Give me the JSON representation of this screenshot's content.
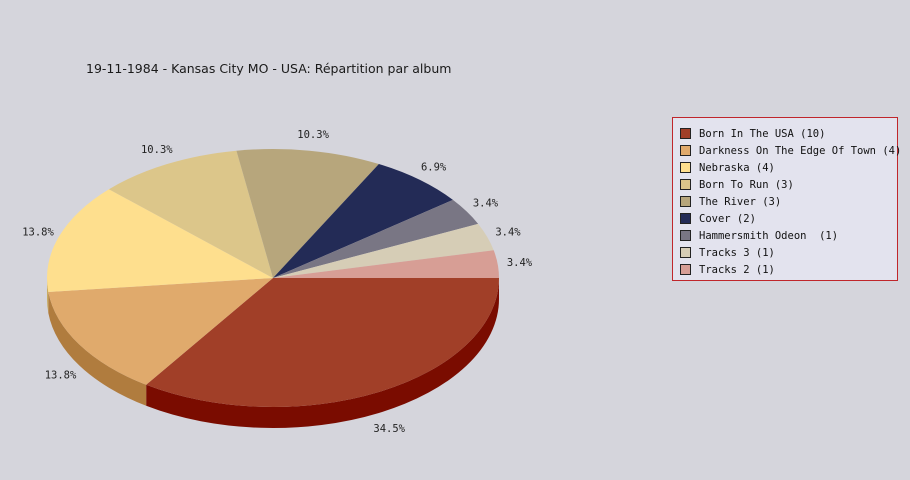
{
  "chart_data": {
    "type": "pie",
    "title": "19-11-1984 - Kansas City MO - USA:  Répartition par album",
    "slices": [
      {
        "label": "Born In The USA (10)",
        "value": 10,
        "pct_label": "34.5%",
        "color": "#a13f28",
        "side": "#7a0c00"
      },
      {
        "label": "Darkness On The Edge Of Town (4)",
        "value": 4,
        "pct_label": "13.8%",
        "color": "#e0aa6c",
        "side": "#b07c3e"
      },
      {
        "label": "Nebraska (4)",
        "value": 4,
        "pct_label": "13.8%",
        "color": "#fedf8e",
        "side": "#c9ab60"
      },
      {
        "label": "Born To Run (3)",
        "value": 3,
        "pct_label": "10.3%",
        "color": "#dcc68a",
        "side": "#aa9660"
      },
      {
        "label": "The River (3)",
        "value": 3,
        "pct_label": "10.3%",
        "color": "#b7a67c",
        "side": "#857652"
      },
      {
        "label": "Cover (2)",
        "value": 2,
        "pct_label": "6.9%",
        "color": "#232b56",
        "side": "#111633"
      },
      {
        "label": "Hammersmith Odeon  (1)",
        "value": 1,
        "pct_label": "3.4%",
        "color": "#797684",
        "side": "#55525e"
      },
      {
        "label": "Tracks 3 (1)",
        "value": 1,
        "pct_label": "3.4%",
        "color": "#d6cdb6",
        "side": "#a89f88"
      },
      {
        "label": "Tracks 2 (1)",
        "value": 1,
        "pct_label": "3.4%",
        "color": "#d79e95",
        "side": "#a8716a"
      }
    ],
    "legend_position": "right"
  }
}
